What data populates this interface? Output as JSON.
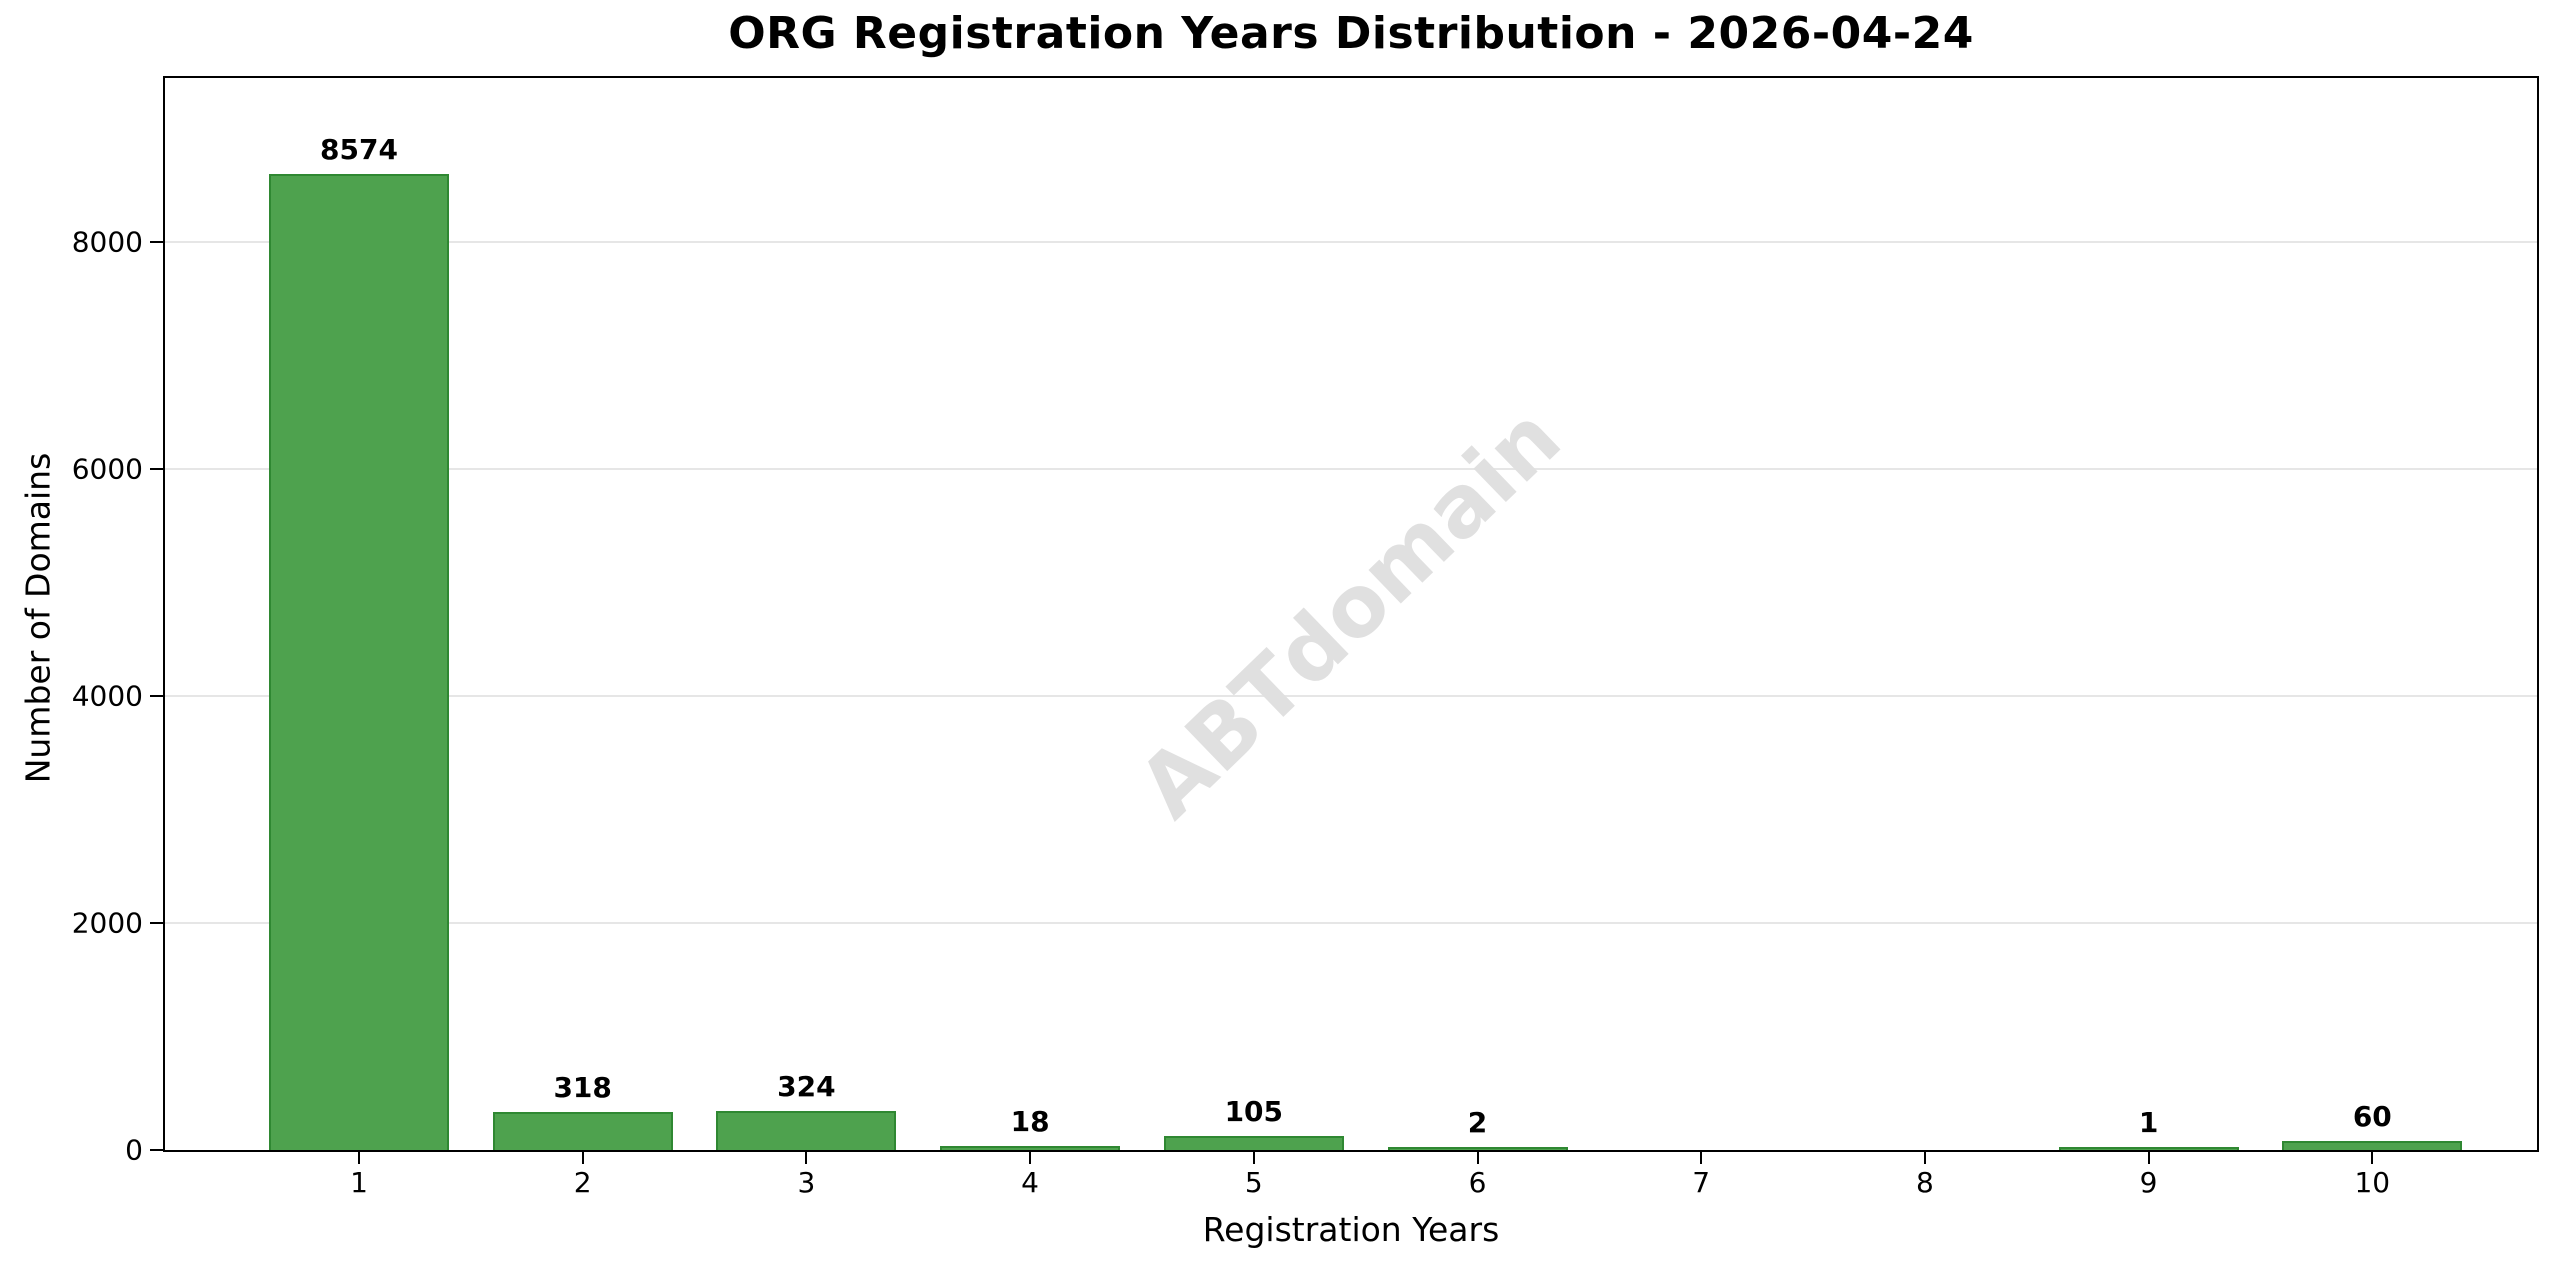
{
  "chart_data": {
    "type": "bar",
    "title": "ORG Registration Years Distribution - 2026-04-24",
    "xlabel": "Registration Years",
    "ylabel": "Number of Domains",
    "categories": [
      "1",
      "2",
      "3",
      "4",
      "5",
      "6",
      "7",
      "8",
      "9",
      "10"
    ],
    "values": [
      8574,
      318,
      324,
      18,
      105,
      2,
      0,
      0,
      1,
      60
    ],
    "value_labels_shown": [
      "8574",
      "318",
      "324",
      "18",
      "105",
      "2",
      "1",
      "60"
    ],
    "yticks": [
      0,
      2000,
      4000,
      6000,
      8000
    ],
    "ylim": [
      0,
      9440
    ],
    "grid": "horizontal-light",
    "legend_position": "none",
    "bar_color": "#4EA24E",
    "bar_edge_color": "#2F8832",
    "grid_color": "#E6E6E6",
    "watermark": "ABTdomain",
    "watermark_color": "#E0E0E0",
    "background_color": "#FFFFFF"
  }
}
